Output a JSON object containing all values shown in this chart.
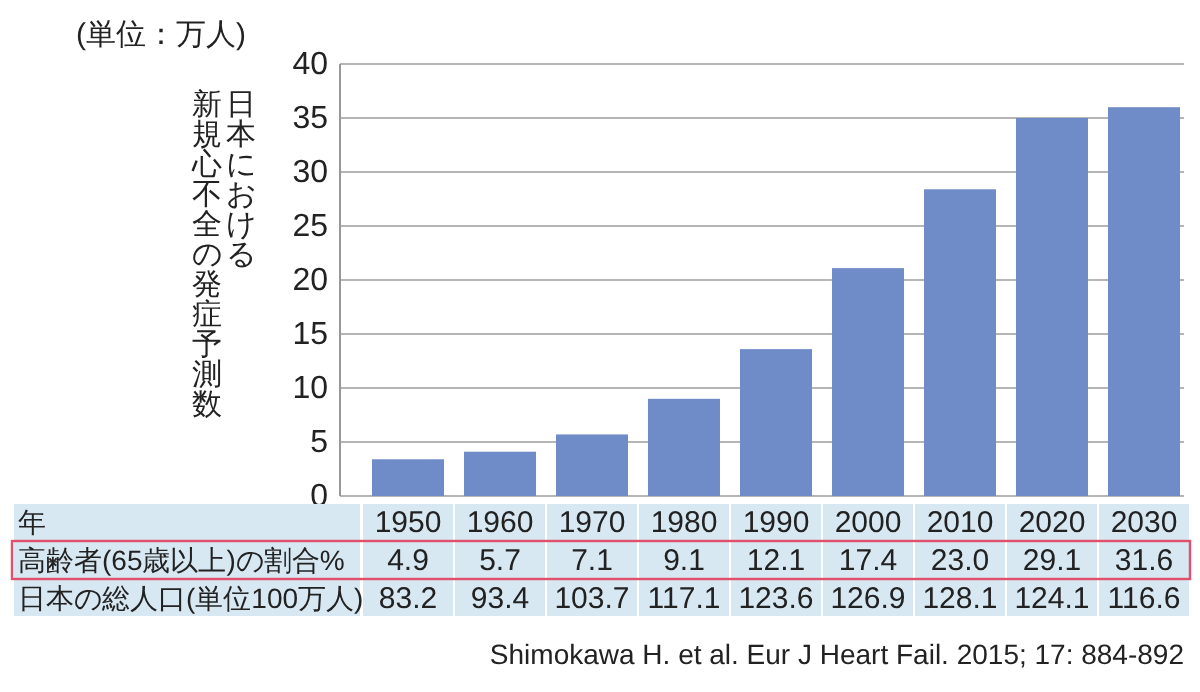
{
  "chart_data": {
    "type": "bar",
    "ylabel": "日本における新規心不全の発症予測数",
    "categories": [
      "1950",
      "1960",
      "1970",
      "1980",
      "1990",
      "2000",
      "2010",
      "2020",
      "2030"
    ],
    "values": [
      3.4,
      4.1,
      5.7,
      9.0,
      13.6,
      21.1,
      28.4,
      35.0,
      36.0
    ],
    "color": "#6f8cc8",
    "ylim": [
      0,
      40
    ],
    "yticks": [
      0,
      5,
      10,
      15,
      20,
      25,
      30,
      35,
      40
    ],
    "grid": "y",
    "annotations": [
      "(単位：万人)",
      "年",
      "高齢者(65歳以上)の割合%",
      "4.9",
      "5.7",
      "7.1",
      "9.1",
      "12.1",
      "17.4",
      "23.0",
      "29.1",
      "31.6",
      "日本の総人口(単位100万人)",
      "83.2",
      "93.4",
      "103.7",
      "117.1",
      "123.6",
      "126.9",
      "128.1",
      "124.1",
      "116.6",
      "Shimokawa H. et al. Eur J Heart Fail. 2015; 17: 884-892"
    ]
  }
}
